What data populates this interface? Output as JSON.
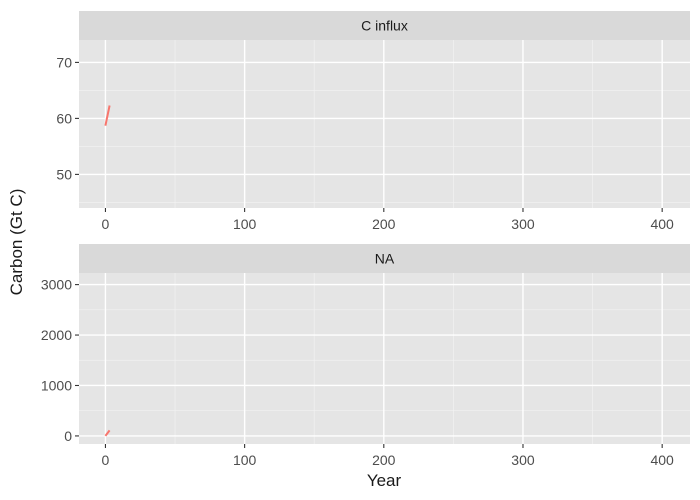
{
  "chart_data": {
    "type": "line",
    "xlabel": "Year",
    "ylabel": "Carbon (Gt C)",
    "line_color": "#F8766D",
    "panel_bg": "#E5E5E5",
    "strip_bg": "#D9D9D9",
    "xlim": [
      -19,
      420
    ],
    "x_ticks": [
      0,
      100,
      200,
      300,
      400
    ],
    "x_minor": [
      50,
      150,
      250,
      350
    ],
    "panels": [
      {
        "strip": "C influx",
        "ylim": [
          44,
          74
        ],
        "y_ticks": [
          50,
          60,
          70
        ],
        "y_minor": [
          45,
          55,
          65
        ],
        "series": [
          {
            "x": [
              0,
              3
            ],
            "y": [
              58.7,
              62.3
            ]
          }
        ]
      },
      {
        "strip": "NA",
        "ylim": [
          -160,
          3230
        ],
        "y_ticks": [
          0,
          1000,
          2000,
          3000
        ],
        "y_minor": [
          500,
          1500,
          2500
        ],
        "series": [
          {
            "x": [
              0,
              3
            ],
            "y": [
              0,
              110
            ]
          }
        ]
      }
    ]
  }
}
